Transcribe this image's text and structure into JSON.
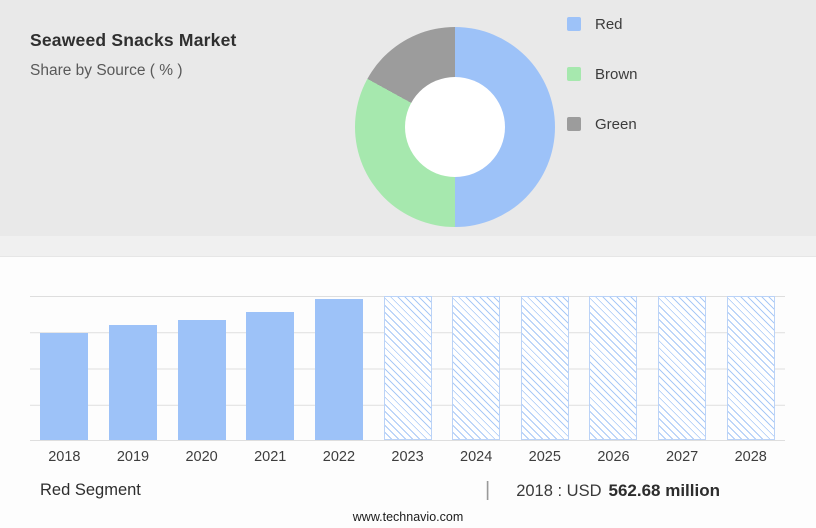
{
  "page": {
    "title": "Seaweed Snacks Market",
    "subtitle": "Share by Source ( % )",
    "footer_left": "Red Segment",
    "footer_divider": "|",
    "footer_stat_prefix": "2018 : USD",
    "footer_stat_value": "562.68 million",
    "website": "www.technavio.com"
  },
  "colors": {
    "blue": "#9DC2F8",
    "green": "#A6E8AE",
    "gray": "#9C9C9C",
    "hatch_line": "#A9C9F7",
    "hatch_border": "#BBD3F7",
    "top_background": "#E9E9E9",
    "grid_line": "#DEDEDE"
  },
  "chart_data": [
    {
      "type": "pie",
      "donut": true,
      "title": "Share by Source ( % )",
      "labels": [
        "Red",
        "Brown",
        "Green"
      ],
      "values": [
        50,
        33,
        17
      ],
      "colors": [
        "#9DC2F8",
        "#A6E8AE",
        "#9C9C9C"
      ],
      "legend_position": "right"
    },
    {
      "type": "bar",
      "categories": [
        "2018",
        "2019",
        "2020",
        "2021",
        "2022",
        "2023",
        "2024",
        "2025",
        "2026",
        "2027",
        "2028"
      ],
      "values": [
        74,
        80,
        83,
        89,
        98,
        100,
        100,
        100,
        100,
        100,
        100
      ],
      "historic_count": 5,
      "forecast_style": "hatched",
      "bar_color": "#9DC2F8",
      "ylim": [
        0,
        100
      ],
      "grid": true,
      "xlabel": "",
      "ylabel": ""
    }
  ]
}
